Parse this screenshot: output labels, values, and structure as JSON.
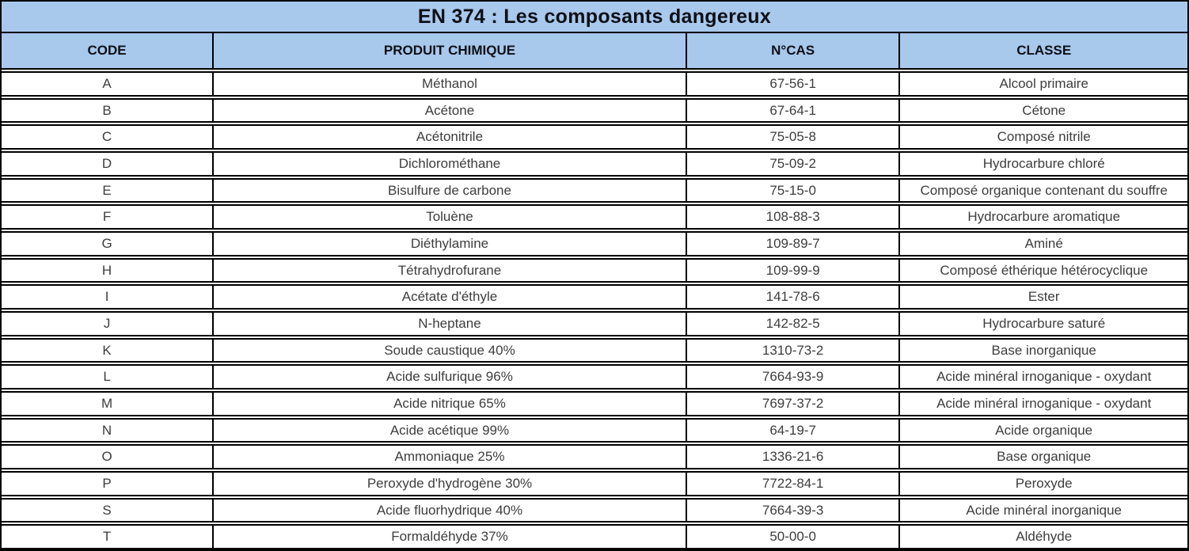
{
  "table": {
    "title": "EN 374 : Les composants dangereux",
    "columns": [
      "CODE",
      "PRODUIT CHIMIQUE",
      "N°CAS",
      "CLASSE"
    ],
    "rows": [
      [
        "A",
        "Méthanol",
        "67-56-1",
        "Alcool primaire"
      ],
      [
        "B",
        "Acétone",
        "67-64-1",
        "Cétone"
      ],
      [
        "C",
        "Acétonitrile",
        "75-05-8",
        "Composé nitrile"
      ],
      [
        "D",
        "Dichlorométhane",
        "75-09-2",
        "Hydrocarbure chloré"
      ],
      [
        "E",
        "Bisulfure de carbone",
        "75-15-0",
        "Composé organique contenant du souffre"
      ],
      [
        "F",
        "Toluène",
        "108-88-3",
        "Hydrocarbure aromatique"
      ],
      [
        "G",
        "Diéthylamine",
        "109-89-7",
        "Aminé"
      ],
      [
        "H",
        "Tétrahydrofurane",
        "109-99-9",
        "Composé éthérique hétérocyclique"
      ],
      [
        "I",
        "Acétate d'éthyle",
        "141-78-6",
        "Ester"
      ],
      [
        "J",
        "N-heptane",
        "142-82-5",
        "Hydrocarbure saturé"
      ],
      [
        "K",
        "Soude caustique 40%",
        "1310-73-2",
        "Base inorganique"
      ],
      [
        "L",
        "Acide sulfurique 96%",
        "7664-93-9",
        "Acide minéral irnoganique - oxydant"
      ],
      [
        "M",
        "Acide nitrique 65%",
        "7697-37-2",
        "Acide minéral irnoganique - oxydant"
      ],
      [
        "N",
        "Acide acétique 99%",
        "64-19-7",
        "Acide organique"
      ],
      [
        "O",
        "Ammoniaque 25%",
        "1336-21-6",
        "Base organique"
      ],
      [
        "P",
        "Peroxyde d'hydrogène 30%",
        "7722-84-1",
        "Peroxyde"
      ],
      [
        "S",
        "Acide fluorhydrique 40%",
        "7664-39-3",
        "Acide minéral inorganique"
      ],
      [
        "T",
        "Formaldéhyde 37%",
        "50-00-0",
        "Aldéhyde"
      ]
    ]
  },
  "colors": {
    "header_bg": "#a8c8ec",
    "border": "#000000",
    "title_text": "#0d1016",
    "body_text": "#3d3d3d"
  }
}
